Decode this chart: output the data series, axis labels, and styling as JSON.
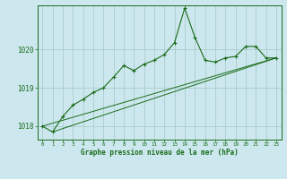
{
  "title": "Graphe pression niveau de la mer (hPa)",
  "bg_color": "#cce8ee",
  "grid_color": "#aacccc",
  "line_color": "#1a6b1a",
  "ylabel_ticks": [
    1018,
    1019,
    1020
  ],
  "xlim": [
    -0.5,
    23.5
  ],
  "ylim": [
    1017.65,
    1021.15
  ],
  "main_series_x": [
    0,
    1,
    2,
    3,
    4,
    5,
    6,
    7,
    8,
    9,
    10,
    11,
    12,
    13,
    14,
    15,
    16,
    17,
    18,
    19,
    20,
    21,
    22,
    23
  ],
  "main_series_y": [
    1018.0,
    1017.85,
    1018.25,
    1018.55,
    1018.7,
    1018.88,
    1019.0,
    1019.28,
    1019.58,
    1019.45,
    1019.62,
    1019.72,
    1019.87,
    1020.18,
    1021.08,
    1020.32,
    1019.72,
    1019.67,
    1019.78,
    1019.82,
    1020.08,
    1020.08,
    1019.78,
    1019.78
  ],
  "line2_x": [
    0,
    23
  ],
  "line2_y": [
    1018.0,
    1019.78
  ],
  "line3_x": [
    1,
    23
  ],
  "line3_y": [
    1017.85,
    1019.78
  ]
}
